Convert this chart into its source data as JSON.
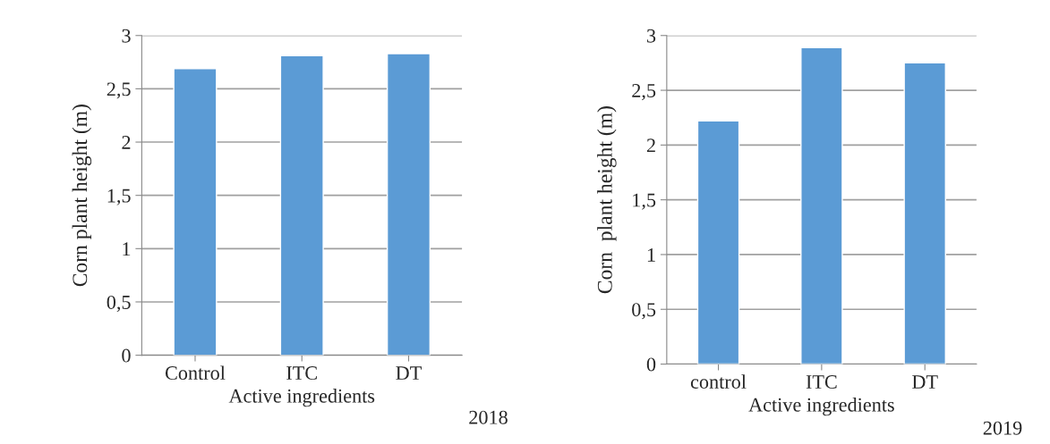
{
  "chart_data": [
    {
      "type": "bar",
      "xlabel": "Active ingredients",
      "ylabel": "Corn plant height (m)",
      "categories": [
        "Control",
        "ITC",
        "DT"
      ],
      "values": [
        2.69,
        2.81,
        2.83
      ],
      "color": "#5b9bd5",
      "ylim": [
        0,
        3
      ],
      "yticks": [
        0,
        {
          "value": 0.5,
          "label": "0,5"
        },
        1,
        {
          "value": 1.5,
          "label": "1,5"
        },
        2,
        {
          "value": 2.5,
          "label": "2,5"
        },
        3
      ],
      "grid": "y",
      "annotations": [
        "2018"
      ]
    },
    {
      "type": "bar",
      "xlabel": "Active ingredients",
      "ylabel": "Corn  plant height (m)",
      "categories": [
        "control",
        "ITC",
        "DT"
      ],
      "values": [
        2.22,
        2.89,
        2.75
      ],
      "color": "#5b9bd5",
      "ylim": [
        0,
        3
      ],
      "yticks": [
        0,
        {
          "value": 0.5,
          "label": "0,5"
        },
        1,
        {
          "value": 1.5,
          "label": "1,5"
        },
        2,
        {
          "value": 2.5,
          "label": "2,5"
        },
        3
      ],
      "grid": "y",
      "annotations": [
        "2019"
      ]
    }
  ]
}
